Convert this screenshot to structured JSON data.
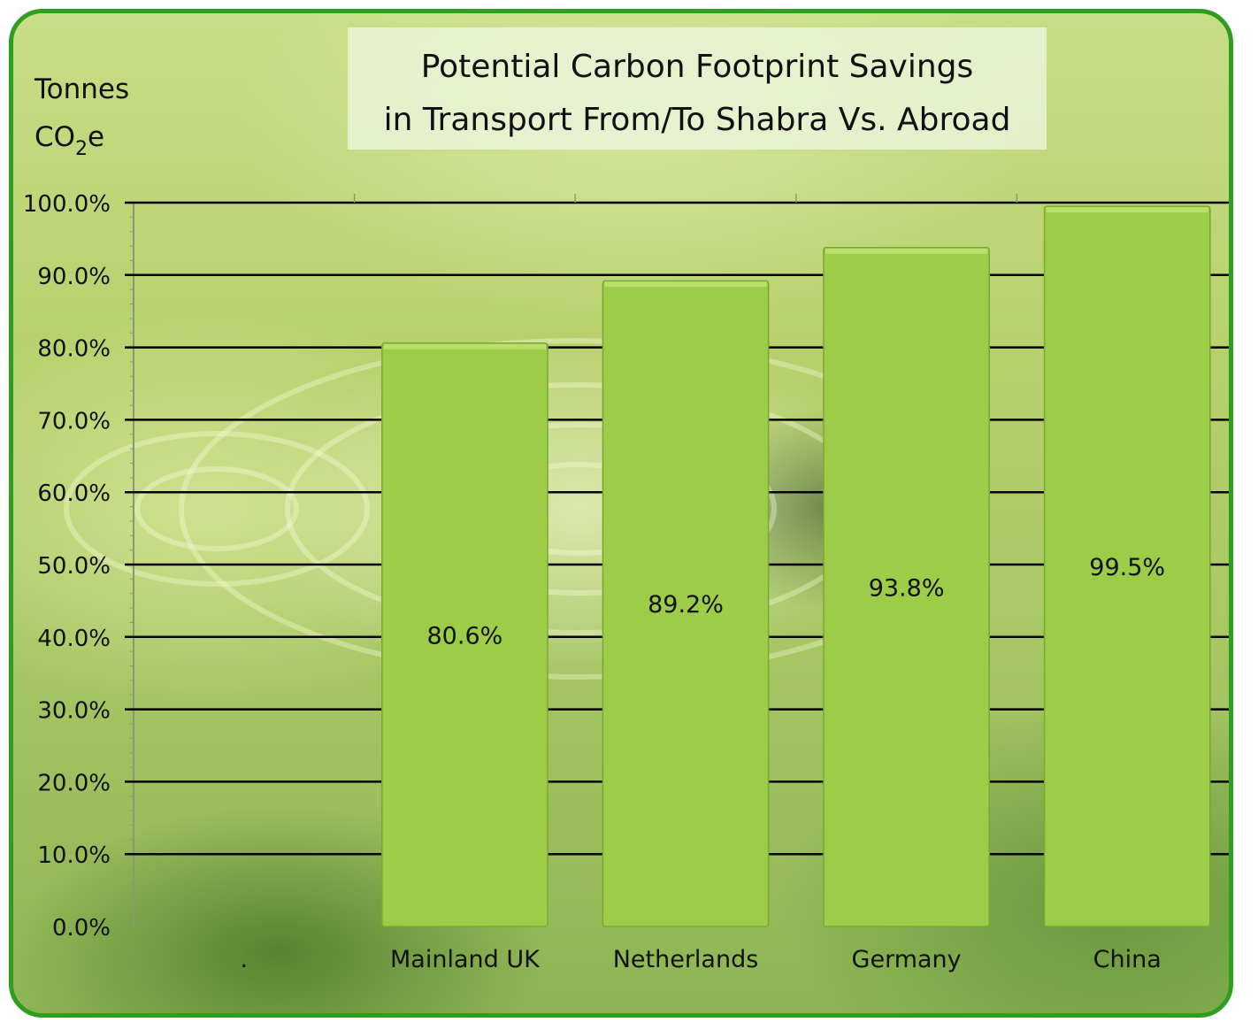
{
  "chart_data": {
    "type": "bar",
    "title_lines": [
      "Potential Carbon Footprint Savings",
      "in Transport From/To Shabra Vs. Abroad"
    ],
    "ylabel_line1": "Tonnes",
    "ylabel_line2_main": "CO",
    "ylabel_line2_sub": "2",
    "ylabel_line2_end": "e",
    "categories": [
      ".",
      "Mainland UK",
      "Netherlands",
      "Germany",
      "China"
    ],
    "values": [
      null,
      80.6,
      89.2,
      93.8,
      99.5
    ],
    "value_labels": [
      "",
      "80.6%",
      "89.2%",
      "93.8%",
      "99.5%"
    ],
    "ylim": [
      0,
      100
    ],
    "yticks": [
      0,
      10,
      20,
      30,
      40,
      50,
      60,
      70,
      80,
      90,
      100
    ],
    "ytick_labels": [
      "0.0%",
      "10.0%",
      "20.0%",
      "30.0%",
      "40.0%",
      "50.0%",
      "60.0%",
      "70.0%",
      "80.0%",
      "90.0%",
      "100.0%"
    ],
    "grid": true,
    "colors": {
      "bar": "#9ccc48",
      "border": "#2e9e1e",
      "grid": "#000000"
    }
  }
}
